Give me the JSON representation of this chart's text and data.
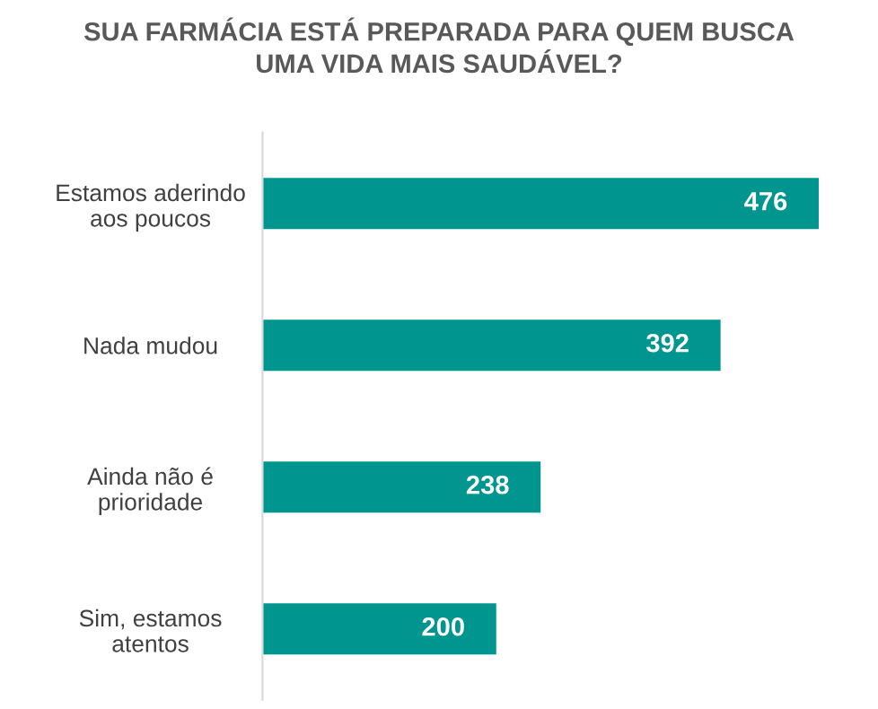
{
  "chart_data": {
    "type": "bar",
    "orientation": "horizontal",
    "title": "SUA FARMÁCIA ESTÁ PREPARADA PARA QUEM BUSCA\nUMA VIDA MAIS SAUDÁVEL?",
    "categories": [
      "Estamos aderindo\naos poucos",
      "Nada mudou",
      "Ainda não é\nprioridade",
      "Sim, estamos\natentos"
    ],
    "values": [
      476,
      392,
      238,
      200
    ],
    "color": "#00968f",
    "data_labels": true,
    "tick_labels": "y",
    "grid": false,
    "legend": false
  }
}
